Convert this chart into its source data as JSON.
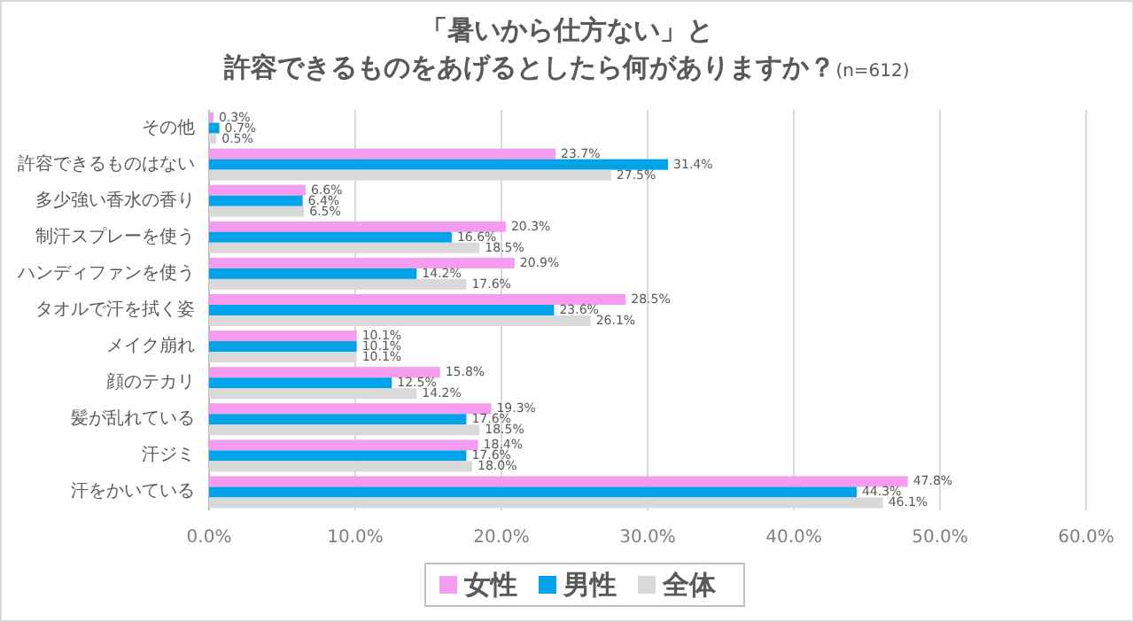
{
  "chart_data": {
    "type": "bar",
    "orientation": "horizontal",
    "title": "「暑いから仕方ない」と",
    "subtitle": "許容できるものをあげるとしたら何がありますか？",
    "annotations": [
      "(n=612)"
    ],
    "categories": [
      "その他",
      "許容できるものはない",
      "多少強い香水の香り",
      "制汗スプレーを使う",
      "ハンディファンを使う",
      "タオルで汗を拭く姿",
      "メイク崩れ",
      "顔のテカリ",
      "髪が乱れている",
      "汗ジミ",
      "汗をかいている"
    ],
    "series": [
      {
        "name": "女性",
        "color": "#f39cf0",
        "values": [
          0.3,
          23.7,
          6.6,
          20.3,
          20.9,
          28.5,
          10.1,
          15.8,
          19.3,
          18.4,
          47.8
        ],
        "value_labels": [
          "0.3%",
          "23.7%",
          "6.6%",
          "20.3%",
          "20.9%",
          "28.5%",
          "10.1%",
          "15.8%",
          "19.3%",
          "18.4%",
          "47.8%"
        ]
      },
      {
        "name": "男性",
        "color": "#00a3e8",
        "values": [
          0.7,
          31.4,
          6.4,
          16.6,
          14.2,
          23.6,
          10.1,
          12.5,
          17.6,
          17.6,
          44.3
        ],
        "value_labels": [
          "0.7%",
          "31.4%",
          "6.4%",
          "16.6%",
          "14.2%",
          "23.6%",
          "10.1%",
          "12.5%",
          "17.6%",
          "17.6%",
          "44.3%"
        ]
      },
      {
        "name": "全体",
        "color": "#d9d9d9",
        "values": [
          0.5,
          27.5,
          6.5,
          18.5,
          17.6,
          26.1,
          10.1,
          14.2,
          18.5,
          18.0,
          46.1
        ],
        "value_labels": [
          "0.5%",
          "27.5%",
          "6.5%",
          "18.5%",
          "17.6%",
          "26.1%",
          "10.1%",
          "14.2%",
          "18.5%",
          "18.0%",
          "46.1%"
        ]
      }
    ],
    "xlim": [
      0,
      60
    ],
    "xticks": [
      {
        "value": 0,
        "label": "0.0%"
      },
      {
        "value": 10,
        "label": "10.0%"
      },
      {
        "value": 20,
        "label": "20.0%"
      },
      {
        "value": 30,
        "label": "30.0%"
      },
      {
        "value": 40,
        "label": "40.0%"
      },
      {
        "value": 50,
        "label": "50.0%"
      },
      {
        "value": 60,
        "label": "60.0%"
      }
    ],
    "grid": "x",
    "legend": "bottom"
  }
}
